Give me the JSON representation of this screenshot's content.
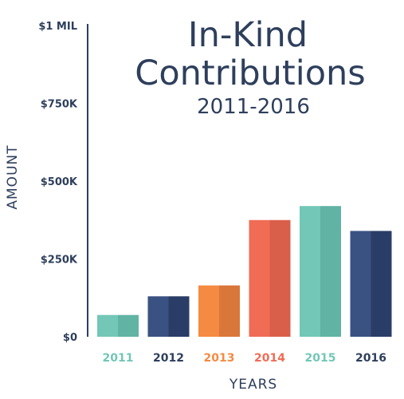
{
  "chart_data": {
    "type": "bar",
    "title": "In-Kind Contributions",
    "title_lines": [
      "In-Kind",
      "Contributions"
    ],
    "subtitle": "2011-2016",
    "xlabel": "YEARS",
    "ylabel": "AMOUNT",
    "categories": [
      "2011",
      "2012",
      "2013",
      "2014",
      "2015",
      "2016"
    ],
    "values": [
      70000,
      130000,
      165000,
      375000,
      420000,
      340000
    ],
    "ylim": [
      0,
      1000000
    ],
    "yticks": [
      {
        "value": 0,
        "label": "$0"
      },
      {
        "value": 250000,
        "label": "$250K"
      },
      {
        "value": 500000,
        "label": "$500K"
      },
      {
        "value": 750000,
        "label": "$750K"
      },
      {
        "value": 1000000,
        "label": "$1 MIL"
      }
    ],
    "grid": false,
    "bar_colors": [
      {
        "light": "#72c7b6",
        "dark": "#61b3a4"
      },
      {
        "light": "#3a5282",
        "dark": "#2a3d66"
      },
      {
        "light": "#f58a42",
        "dark": "#d9773a"
      },
      {
        "light": "#f06c55",
        "dark": "#d95f4b"
      },
      {
        "light": "#72c7b6",
        "dark": "#61b3a4"
      },
      {
        "light": "#3a5282",
        "dark": "#2a3d66"
      }
    ],
    "tick_label_colors": [
      "#72c7b6",
      "#2e3f5c",
      "#f58a42",
      "#f06c55",
      "#72c7b6",
      "#2e3f5c"
    ]
  }
}
